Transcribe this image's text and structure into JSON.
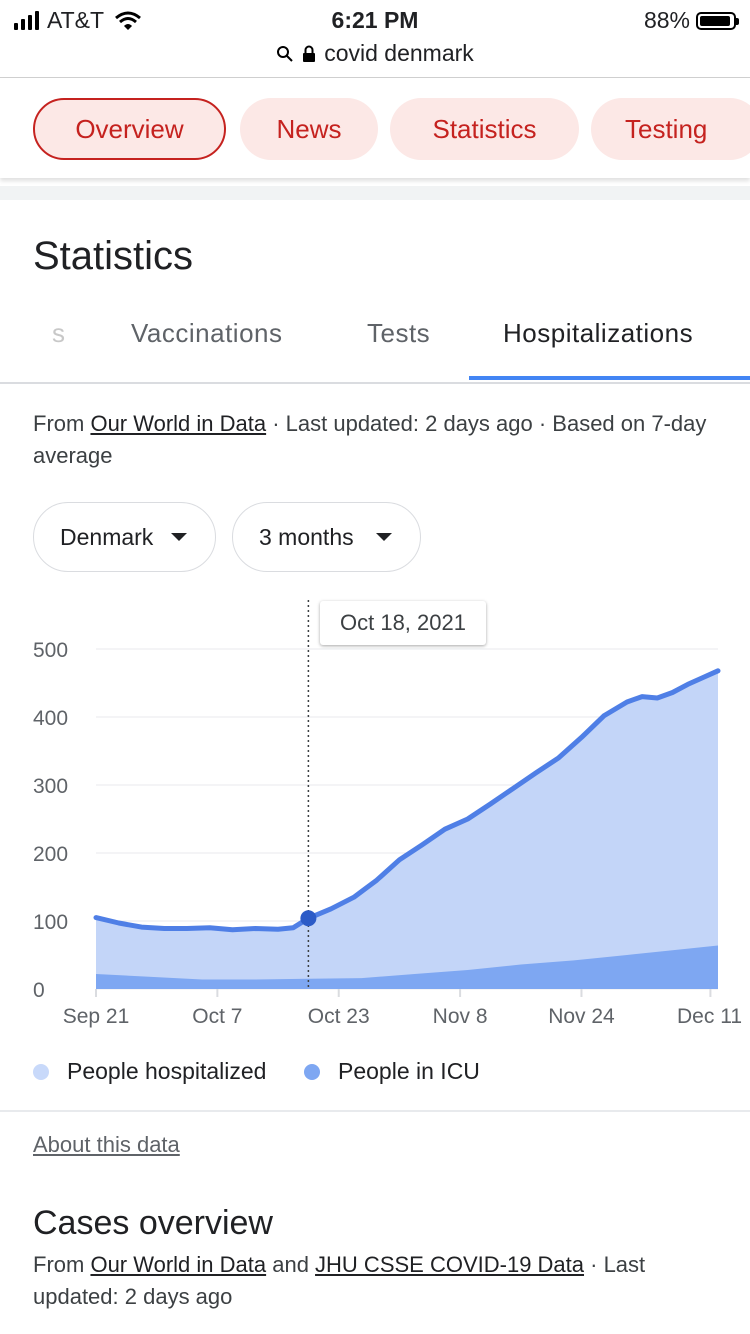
{
  "status_bar": {
    "carrier": "AT&T",
    "time": "6:21 PM",
    "battery": "88%"
  },
  "browser": {
    "query": "covid denmark"
  },
  "chips": [
    {
      "label": "Overview",
      "active": true
    },
    {
      "label": "News",
      "active": false
    },
    {
      "label": "Statistics",
      "active": false
    },
    {
      "label": "Testing",
      "active": false
    }
  ],
  "section_title": "Statistics",
  "tabs": [
    {
      "label": "s"
    },
    {
      "label": "Vaccinations"
    },
    {
      "label": "Tests"
    },
    {
      "label": "Hospitalizations",
      "selected": true
    }
  ],
  "source": {
    "prefix": "From ",
    "link": "Our World in Data",
    "rest": " · Last updated: 2 days ago · Based on 7-day average"
  },
  "filters": {
    "country": "Denmark",
    "range": "3 months"
  },
  "tooltip": {
    "date": "Oct 18, 2021"
  },
  "colors": {
    "hospitalized_fill": "#c3d5f8",
    "icu_fill": "#7ea7f2",
    "line": "#4f7fe6",
    "accent": "#c5221f"
  },
  "chart_data": {
    "type": "area",
    "x_ticks": [
      "Sep 21",
      "Oct 7",
      "Oct 23",
      "Nov 8",
      "Nov 24",
      "Dec 11"
    ],
    "y_ticks": [
      "0",
      "100",
      "200",
      "300",
      "400",
      "500"
    ],
    "ylim": [
      0,
      500
    ],
    "x_start": "2021-09-20",
    "x_end": "2021-12-11",
    "highlight": {
      "date": "2021-10-18",
      "value": 104
    },
    "series": [
      {
        "name": "People hospitalized",
        "points": [
          [
            "2021-09-20",
            105
          ],
          [
            "2021-09-23",
            97
          ],
          [
            "2021-09-26",
            91
          ],
          [
            "2021-09-29",
            89
          ],
          [
            "2021-10-02",
            89
          ],
          [
            "2021-10-05",
            90
          ],
          [
            "2021-10-08",
            87
          ],
          [
            "2021-10-11",
            89
          ],
          [
            "2021-10-14",
            88
          ],
          [
            "2021-10-16",
            90
          ],
          [
            "2021-10-18",
            104
          ],
          [
            "2021-10-21",
            118
          ],
          [
            "2021-10-24",
            135
          ],
          [
            "2021-10-27",
            160
          ],
          [
            "2021-10-30",
            190
          ],
          [
            "2021-11-02",
            212
          ],
          [
            "2021-11-05",
            235
          ],
          [
            "2021-11-08",
            250
          ],
          [
            "2021-11-11",
            272
          ],
          [
            "2021-11-14",
            295
          ],
          [
            "2021-11-17",
            318
          ],
          [
            "2021-11-20",
            340
          ],
          [
            "2021-11-23",
            370
          ],
          [
            "2021-11-26",
            402
          ],
          [
            "2021-11-29",
            422
          ],
          [
            "2021-12-01",
            430
          ],
          [
            "2021-12-03",
            428
          ],
          [
            "2021-12-05",
            436
          ],
          [
            "2021-12-07",
            448
          ],
          [
            "2021-12-09",
            458
          ],
          [
            "2021-12-11",
            468
          ]
        ]
      },
      {
        "name": "People in ICU",
        "points": [
          [
            "2021-09-20",
            22
          ],
          [
            "2021-09-27",
            18
          ],
          [
            "2021-10-04",
            14
          ],
          [
            "2021-10-11",
            14
          ],
          [
            "2021-10-18",
            15
          ],
          [
            "2021-10-25",
            16
          ],
          [
            "2021-11-01",
            22
          ],
          [
            "2021-11-08",
            28
          ],
          [
            "2021-11-15",
            36
          ],
          [
            "2021-11-22",
            42
          ],
          [
            "2021-11-29",
            50
          ],
          [
            "2021-12-05",
            57
          ],
          [
            "2021-12-11",
            64
          ]
        ]
      }
    ]
  },
  "about_link": "About this data",
  "cases": {
    "title": "Cases overview",
    "prefix": "From ",
    "link1": "Our World in Data",
    "mid": " and ",
    "link2": "JHU CSSE COVID-19 Data",
    "rest": " · Last updated: 2 days ago"
  }
}
